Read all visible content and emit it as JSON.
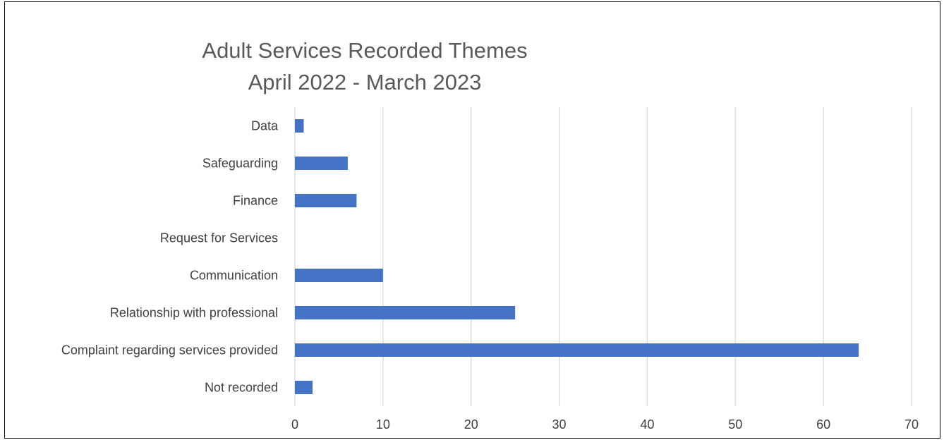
{
  "chart_data": {
    "type": "bar",
    "orientation": "horizontal",
    "title": "Adult Services Recorded Themes",
    "subtitle": "April 2022 - March 2023",
    "categories": [
      "Data",
      "Safeguarding",
      "Finance",
      "Request for Services",
      "Communication",
      "Relationship with professional",
      "Complaint regarding services provided",
      "Not recorded"
    ],
    "values": [
      1,
      6,
      7,
      0,
      10,
      25,
      64,
      2
    ],
    "xlim": [
      0,
      70
    ],
    "xticks": [
      0,
      10,
      20,
      30,
      40,
      50,
      60,
      70
    ],
    "grid": "vertical",
    "legend": "none",
    "bar_color": "#4472C4",
    "grid_color": "#D9D9D9"
  }
}
